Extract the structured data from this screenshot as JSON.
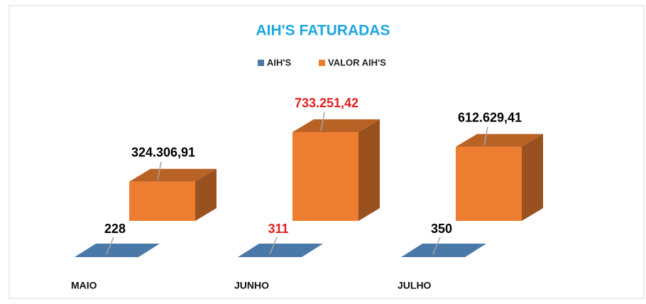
{
  "chart_data": {
    "type": "bar3d",
    "title": "AIH'S FATURADAS",
    "categories": [
      "MAIO",
      "JUNHO",
      "JULHO"
    ],
    "series": [
      {
        "name": "AIH'S",
        "color": "#4a78a8",
        "values": [
          228,
          311,
          350
        ],
        "value_label_colors": [
          "#000000",
          "#e02020",
          "#000000"
        ]
      },
      {
        "name": "VALOR AIH'S",
        "color": "#ed7d31",
        "values": [
          324306.91,
          733251.42,
          612629.41
        ],
        "value_labels": [
          "324.306,91",
          "733.251,42",
          "612.629,41"
        ],
        "value_label_colors": [
          "#000000",
          "#e02020",
          "#000000"
        ]
      }
    ],
    "legend": "top"
  }
}
